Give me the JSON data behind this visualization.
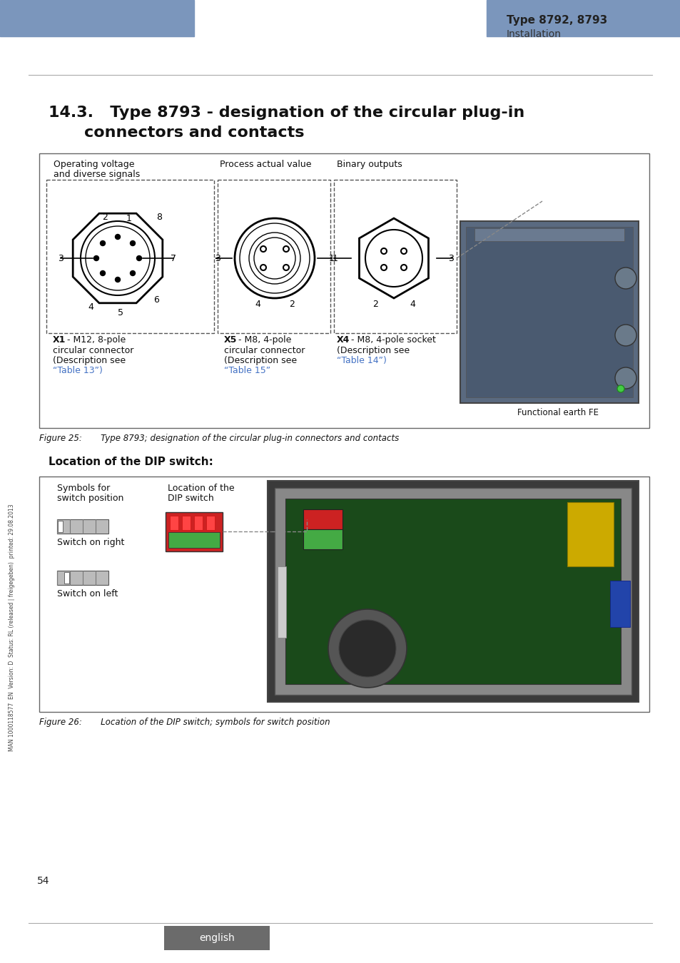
{
  "page_bg": "#ffffff",
  "header_bar_color": "#7b96bc",
  "header_right_bold": "Type 8792, 8793",
  "header_right_sub": "Installation",
  "section_title_line1": "14.3.   Type 8793 - designation of the circular plug-in",
  "section_title_line2": "            connectors and contacts",
  "figure1_caption": "Figure 25:       Type 8793; designation of the circular plug-in connectors and contacts",
  "figure2_title": "Location of the DIP switch:",
  "figure2_caption": "Figure 26:       Location of the DIP switch; symbols for switch position",
  "page_number": "54",
  "footer_bar_color": "#6b6b6b",
  "footer_text": "english",
  "sidebar_text": "MAN 1000118577  EN  Version: D  Status: RL (released | freigegeben)  printed: 29.08.2013",
  "divider_color": "#aaaaaa",
  "box1_label1": "Operating voltage",
  "box1_label2": "and diverse signals",
  "box1_label3": "Process actual value",
  "box1_label4": "Binary outputs",
  "box1_x1_bold": "X1",
  "box1_x1_rest": " - M12, 8-pole",
  "box1_x1_desc1": "circular connector",
  "box1_x1_desc2": "(Description see",
  "box1_x1_desc3": "“Table 13”)",
  "box1_x5_bold": "X5",
  "box1_x5_rest": " - M8, 4-pole",
  "box1_x5_desc1": "circular connector",
  "box1_x5_desc2": "(Description see",
  "box1_x5_desc3": "“Table 15”",
  "box1_x4_bold": "X4",
  "box1_x4_rest": " - M8, 4-pole socket",
  "box1_x4_desc1": "(Description see",
  "box1_x4_desc2": "“Table 14”)",
  "box2_label1": "Symbols for",
  "box2_label2": "switch position",
  "box2_label3": "Location of the",
  "box2_label4": "DIP switch",
  "box2_sw1": "Switch on right",
  "box2_sw2": "Switch on left",
  "fe_label": "Functional earth FE",
  "link_color": "#4472c4"
}
